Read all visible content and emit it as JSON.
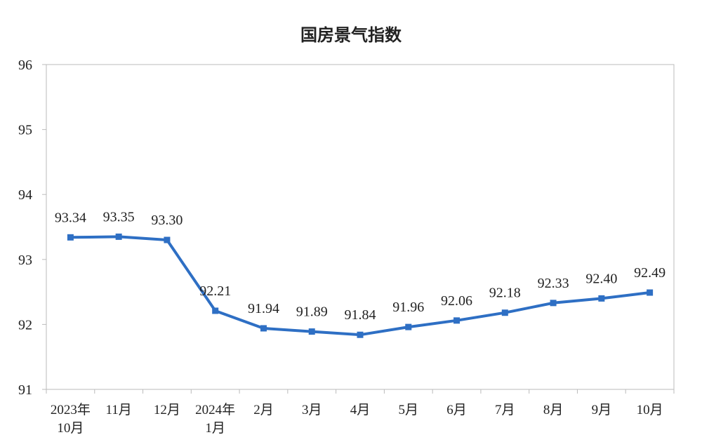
{
  "chart_data": {
    "type": "line",
    "title": "国房景气指数",
    "xlabel": "",
    "ylabel": "",
    "ylim": [
      91,
      96
    ],
    "yticks": [
      91,
      92,
      93,
      94,
      95,
      96
    ],
    "grid": false,
    "categories": [
      [
        "2023年",
        "10月"
      ],
      [
        "11月"
      ],
      [
        "12月"
      ],
      [
        "2024年",
        "1月"
      ],
      [
        "2月"
      ],
      [
        "3月"
      ],
      [
        "4月"
      ],
      [
        "5月"
      ],
      [
        "6月"
      ],
      [
        "7月"
      ],
      [
        "8月"
      ],
      [
        "9月"
      ],
      [
        "10月"
      ]
    ],
    "values": [
      93.34,
      93.35,
      93.3,
      92.21,
      91.94,
      91.89,
      91.84,
      91.96,
      92.06,
      92.18,
      92.33,
      92.4,
      92.49
    ],
    "data_labels": [
      "93.34",
      "93.35",
      "93.30",
      "92.21",
      "91.94",
      "91.89",
      "91.84",
      "91.96",
      "92.06",
      "92.18",
      "92.33",
      "92.40",
      "92.49"
    ],
    "line_color": "#2e6fc4"
  }
}
